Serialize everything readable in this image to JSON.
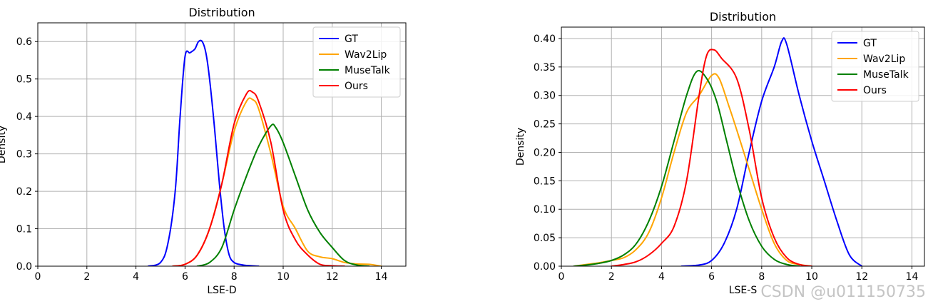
{
  "chart_data": [
    {
      "type": "line",
      "title": "Distribution",
      "xlabel": "LSE-D",
      "ylabel": "Density",
      "xlim": [
        0,
        15
      ],
      "ylim": [
        0,
        0.65
      ],
      "xticks": [
        0,
        2,
        4,
        6,
        8,
        10,
        12,
        14
      ],
      "yticks": [
        0.0,
        0.1,
        0.2,
        0.3,
        0.4,
        0.5,
        0.6
      ],
      "ytick_labels": [
        "0.0",
        "0.1",
        "0.2",
        "0.3",
        "0.4",
        "0.5",
        "0.6"
      ],
      "grid": true,
      "legend": "top-right",
      "series": [
        {
          "name": "GT",
          "color": "#0000ff",
          "x": [
            4.5,
            5.0,
            5.3,
            5.6,
            5.8,
            6.0,
            6.2,
            6.4,
            6.55,
            6.7,
            6.85,
            7.0,
            7.2,
            7.4,
            7.6,
            7.8,
            8.0,
            8.2,
            8.5,
            9.0
          ],
          "y": [
            0.0,
            0.01,
            0.06,
            0.2,
            0.4,
            0.56,
            0.57,
            0.58,
            0.6,
            0.6,
            0.57,
            0.5,
            0.37,
            0.22,
            0.1,
            0.03,
            0.01,
            0.005,
            0.002,
            0.0
          ]
        },
        {
          "name": "Wav2Lip",
          "color": "#ffa500",
          "x": [
            5.5,
            6.0,
            6.5,
            7.0,
            7.5,
            8.0,
            8.5,
            8.75,
            9.0,
            9.5,
            10.0,
            10.5,
            11.0,
            11.5,
            12.0,
            12.5,
            13.0,
            13.5,
            14.0
          ],
          "y": [
            0.0,
            0.005,
            0.03,
            0.1,
            0.22,
            0.36,
            0.44,
            0.445,
            0.42,
            0.3,
            0.16,
            0.1,
            0.04,
            0.025,
            0.02,
            0.01,
            0.006,
            0.005,
            0.0
          ]
        },
        {
          "name": "MuseTalk",
          "color": "#008000",
          "x": [
            6.5,
            7.0,
            7.5,
            8.0,
            8.5,
            9.0,
            9.5,
            9.7,
            10.0,
            10.5,
            11.0,
            11.5,
            12.0,
            12.5,
            13.0,
            13.5
          ],
          "y": [
            0.0,
            0.01,
            0.05,
            0.15,
            0.24,
            0.32,
            0.375,
            0.37,
            0.33,
            0.24,
            0.15,
            0.09,
            0.05,
            0.015,
            0.003,
            0.0
          ]
        },
        {
          "name": "Ours",
          "color": "#ff0000",
          "x": [
            5.5,
            6.0,
            6.5,
            7.0,
            7.5,
            8.0,
            8.5,
            8.75,
            9.0,
            9.5,
            10.0,
            10.5,
            11.0,
            11.5,
            12.0,
            12.5
          ],
          "y": [
            0.0,
            0.005,
            0.03,
            0.1,
            0.22,
            0.38,
            0.46,
            0.465,
            0.44,
            0.33,
            0.15,
            0.07,
            0.03,
            0.005,
            0.001,
            0.0
          ]
        }
      ]
    },
    {
      "type": "line",
      "title": "Distribution",
      "xlabel": "LSE-S",
      "ylabel": "Density",
      "xlim": [
        0,
        14.5
      ],
      "ylim": [
        0,
        0.42
      ],
      "xticks": [
        0,
        2,
        4,
        6,
        8,
        10,
        12,
        14
      ],
      "yticks": [
        0.0,
        0.05,
        0.1,
        0.15,
        0.2,
        0.25,
        0.3,
        0.35,
        0.4
      ],
      "ytick_labels": [
        "0.00",
        "0.05",
        "0.10",
        "0.15",
        "0.20",
        "0.25",
        "0.30",
        "0.35",
        "0.40"
      ],
      "grid": true,
      "legend": "top-right",
      "series": [
        {
          "name": "GT",
          "color": "#0000ff",
          "x": [
            4.8,
            5.5,
            6.0,
            6.5,
            7.0,
            7.5,
            8.0,
            8.5,
            8.8,
            9.0,
            9.5,
            10.0,
            10.5,
            11.0,
            11.5,
            12.0
          ],
          "y": [
            0.0,
            0.002,
            0.01,
            0.04,
            0.1,
            0.2,
            0.29,
            0.35,
            0.395,
            0.39,
            0.3,
            0.22,
            0.15,
            0.08,
            0.02,
            0.0
          ]
        },
        {
          "name": "Wav2Lip",
          "color": "#ffa500",
          "x": [
            0.5,
            1.0,
            1.5,
            2.0,
            2.5,
            3.0,
            3.5,
            4.0,
            4.5,
            5.0,
            5.5,
            6.0,
            6.3,
            6.7,
            7.0,
            7.5,
            8.0,
            8.5,
            9.0,
            9.5,
            10.0
          ],
          "y": [
            0.0,
            0.003,
            0.006,
            0.01,
            0.015,
            0.03,
            0.06,
            0.12,
            0.2,
            0.27,
            0.3,
            0.335,
            0.33,
            0.28,
            0.24,
            0.17,
            0.1,
            0.04,
            0.01,
            0.003,
            0.0
          ]
        },
        {
          "name": "MuseTalk",
          "color": "#008000",
          "x": [
            0.5,
            1.0,
            1.5,
            2.0,
            2.5,
            3.0,
            3.5,
            4.0,
            4.5,
            5.0,
            5.4,
            5.8,
            6.2,
            6.6,
            7.0,
            7.5,
            8.0,
            8.5,
            9.0,
            9.5
          ],
          "y": [
            0.0,
            0.002,
            0.005,
            0.01,
            0.02,
            0.04,
            0.08,
            0.14,
            0.22,
            0.3,
            0.342,
            0.33,
            0.29,
            0.22,
            0.15,
            0.08,
            0.035,
            0.012,
            0.003,
            0.0
          ]
        },
        {
          "name": "Ours",
          "color": "#ff0000",
          "x": [
            2.0,
            2.5,
            3.0,
            3.5,
            4.0,
            4.5,
            5.0,
            5.5,
            5.8,
            6.1,
            6.4,
            7.0,
            7.5,
            8.0,
            8.5,
            9.0,
            9.5,
            10.0
          ],
          "y": [
            0.0,
            0.003,
            0.008,
            0.02,
            0.04,
            0.07,
            0.15,
            0.3,
            0.37,
            0.38,
            0.365,
            0.33,
            0.24,
            0.12,
            0.05,
            0.015,
            0.003,
            0.0
          ]
        }
      ]
    }
  ],
  "watermark": "CSDN @u011150735"
}
